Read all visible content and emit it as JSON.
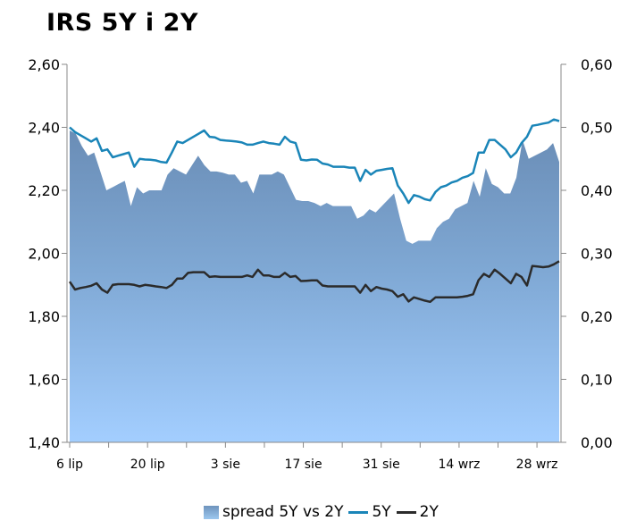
{
  "title": "IRS 5Y i 2Y",
  "chart_data": {
    "type": "line",
    "left_axis": {
      "ylim": [
        1.4,
        2.6
      ],
      "ticks": [
        "1,40",
        "1,60",
        "1,80",
        "2,00",
        "2,20",
        "2,40",
        "2,60"
      ]
    },
    "right_axis": {
      "ylim": [
        0.0,
        0.6
      ],
      "ticks": [
        "0,00",
        "0,10",
        "0,20",
        "0,30",
        "0,40",
        "0,50",
        "0,60"
      ]
    },
    "x_tick_labels": [
      "6 lip",
      "20 lip",
      "3 sie",
      "17 sie",
      "31 sie",
      "14 wrz",
      "28 wrz"
    ],
    "legend_position": "bottom",
    "series": [
      {
        "name": "spread 5Y vs 2Y",
        "kind": "area",
        "axis": "right",
        "color": "#7a9cc4",
        "values": [
          0.495,
          0.49,
          0.47,
          0.455,
          0.46,
          0.43,
          0.4,
          0.405,
          0.41,
          0.415,
          0.375,
          0.405,
          0.395,
          0.4,
          0.4,
          0.4,
          0.425,
          0.435,
          0.43,
          0.425,
          0.44,
          0.455,
          0.44,
          0.43,
          0.43,
          0.428,
          0.425,
          0.425,
          0.412,
          0.415,
          0.395,
          0.425,
          0.425,
          0.425,
          0.43,
          0.425,
          0.405,
          0.385,
          0.383,
          0.383,
          0.38,
          0.375,
          0.38,
          0.375,
          0.375,
          0.375,
          0.375,
          0.355,
          0.36,
          0.37,
          0.365,
          0.375,
          0.385,
          0.395,
          0.355,
          0.32,
          0.315,
          0.32,
          0.32,
          0.32,
          0.34,
          0.35,
          0.355,
          0.37,
          0.375,
          0.38,
          0.415,
          0.39,
          0.435,
          0.41,
          0.405,
          0.395,
          0.395,
          0.42,
          0.48,
          0.45,
          0.455,
          0.46,
          0.465,
          0.475,
          0.445
        ]
      },
      {
        "name": "5Y",
        "kind": "line",
        "axis": "left",
        "color": "#1a85b8",
        "values": [
          2.4,
          2.385,
          2.375,
          2.365,
          2.355,
          2.365,
          2.325,
          2.33,
          2.305,
          2.31,
          2.315,
          2.32,
          2.275,
          2.3,
          2.298,
          2.297,
          2.295,
          2.29,
          2.288,
          2.32,
          2.355,
          2.35,
          2.36,
          2.37,
          2.38,
          2.39,
          2.37,
          2.368,
          2.36,
          2.358,
          2.357,
          2.355,
          2.352,
          2.345,
          2.345,
          2.35,
          2.355,
          2.35,
          2.348,
          2.345,
          2.37,
          2.355,
          2.35,
          2.297,
          2.295,
          2.298,
          2.297,
          2.285,
          2.282,
          2.275,
          2.275,
          2.275,
          2.272,
          2.272,
          2.23,
          2.265,
          2.25,
          2.262,
          2.265,
          2.268,
          2.27,
          2.215,
          2.19,
          2.16,
          2.185,
          2.18,
          2.172,
          2.168,
          2.195,
          2.21,
          2.215,
          2.225,
          2.23,
          2.24,
          2.245,
          2.255,
          2.32,
          2.32,
          2.36,
          2.36,
          2.345,
          2.33,
          2.305,
          2.32,
          2.35,
          2.37,
          2.405,
          2.408,
          2.412,
          2.415,
          2.425,
          2.42
        ]
      },
      {
        "name": "2Y",
        "kind": "line",
        "axis": "left",
        "color": "#2b2b2b",
        "values": [
          1.91,
          1.885,
          1.89,
          1.893,
          1.897,
          1.905,
          1.885,
          1.875,
          1.9,
          1.902,
          1.902,
          1.902,
          1.9,
          1.895,
          1.9,
          1.898,
          1.895,
          1.893,
          1.89,
          1.9,
          1.92,
          1.92,
          1.938,
          1.94,
          1.94,
          1.94,
          1.925,
          1.927,
          1.925,
          1.925,
          1.925,
          1.925,
          1.925,
          1.93,
          1.925,
          1.948,
          1.93,
          1.93,
          1.925,
          1.925,
          1.938,
          1.925,
          1.928,
          1.912,
          1.913,
          1.914,
          1.914,
          1.898,
          1.895,
          1.895,
          1.895,
          1.895,
          1.895,
          1.895,
          1.875,
          1.9,
          1.88,
          1.893,
          1.888,
          1.885,
          1.88,
          1.862,
          1.87,
          1.847,
          1.86,
          1.855,
          1.85,
          1.846,
          1.86,
          1.86,
          1.86,
          1.86,
          1.86,
          1.862,
          1.865,
          1.87,
          1.915,
          1.935,
          1.925,
          1.948,
          1.935,
          1.92,
          1.905,
          1.935,
          1.925,
          1.898,
          1.96,
          1.958,
          1.956,
          1.958,
          1.965,
          1.975
        ]
      }
    ]
  }
}
